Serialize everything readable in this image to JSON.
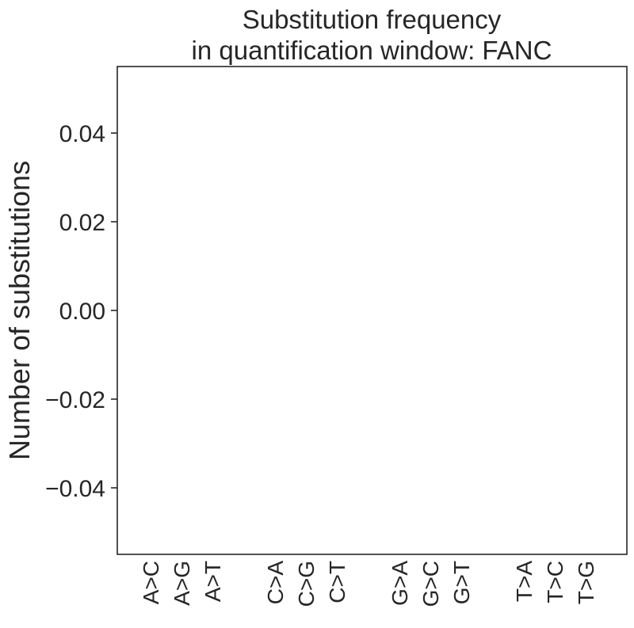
{
  "chart_data": {
    "type": "bar",
    "title_line1": "Substitution frequency",
    "title_line2": "in quantification window: FANC",
    "xlabel": "",
    "ylabel": "Number of substitutions",
    "ylim": [
      -0.055,
      0.055
    ],
    "yticks": [
      0.04,
      0.02,
      0.0,
      -0.02,
      -0.04
    ],
    "ytick_labels": [
      "0.04",
      "0.02",
      "0.00",
      "−0.02",
      "−0.04"
    ],
    "groups": [
      {
        "categories": [
          "A>C",
          "A>G",
          "A>T"
        ]
      },
      {
        "categories": [
          "C>A",
          "C>G",
          "C>T"
        ]
      },
      {
        "categories": [
          "G>A",
          "G>C",
          "G>T"
        ]
      },
      {
        "categories": [
          "T>A",
          "T>C",
          "T>G"
        ]
      }
    ],
    "categories": [
      "A>C",
      "A>G",
      "A>T",
      "C>A",
      "C>G",
      "C>T",
      "G>A",
      "G>C",
      "G>T",
      "T>A",
      "T>C",
      "T>G"
    ],
    "values": [
      0,
      0,
      0,
      0,
      0,
      0,
      0,
      0,
      0,
      0,
      0,
      0
    ],
    "grid": false,
    "colors": {
      "axis": "#262626",
      "text": "#262626",
      "background": "#ffffff"
    }
  }
}
